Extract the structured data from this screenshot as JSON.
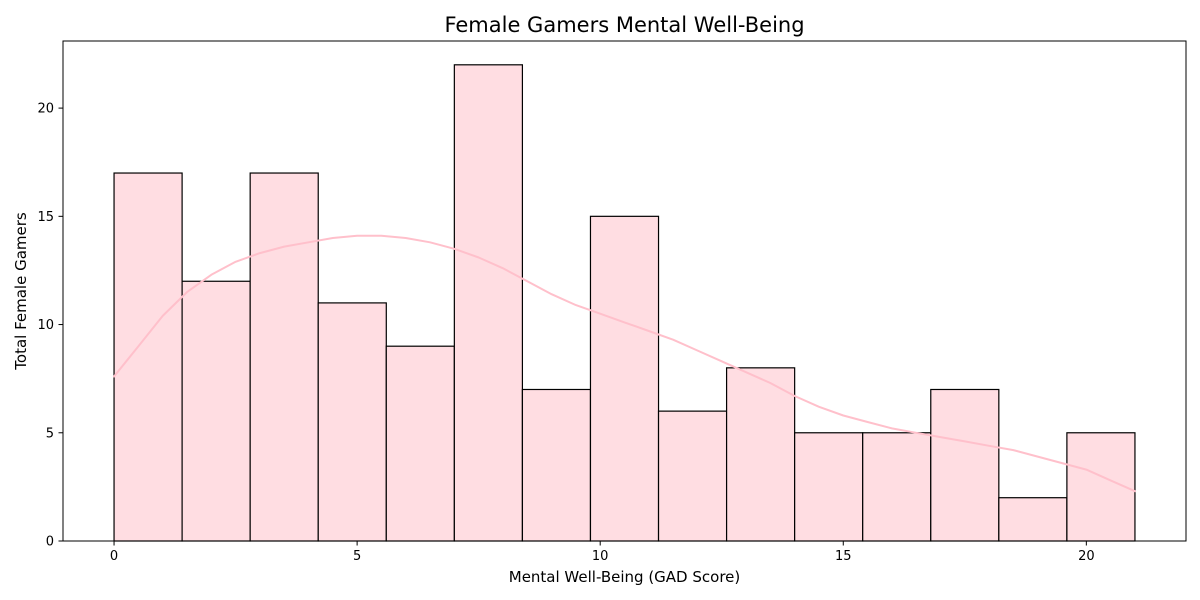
{
  "chart_data": {
    "type": "bar",
    "title": "Female Gamers Mental Well-Being",
    "xlabel": "Mental Well-Being (GAD Score)",
    "ylabel": "Total Female Gamers",
    "bin_edges": [
      0,
      1.4,
      2.8,
      4.2,
      5.6,
      7.0,
      8.4,
      9.8,
      11.2,
      12.6,
      14.0,
      15.4,
      16.8,
      18.2,
      19.6,
      21.0
    ],
    "values": [
      17,
      12,
      17,
      11,
      9,
      22,
      7,
      15,
      6,
      8,
      5,
      5,
      7,
      2,
      5
    ],
    "xlim": [
      -1.05,
      22.05
    ],
    "ylim": [
      0,
      23.1
    ],
    "xticks": [
      0,
      5,
      10,
      15,
      20
    ],
    "yticks": [
      0,
      5,
      10,
      15,
      20
    ],
    "bar_color": "#ffdde2",
    "bar_edge_color": "#000000",
    "kde_color": "#ffc0cb",
    "kde_curve": {
      "x": [
        0,
        0.5,
        1,
        1.5,
        2,
        2.5,
        3,
        3.5,
        4,
        4.5,
        5,
        5.5,
        6,
        6.5,
        7,
        7.5,
        8,
        8.5,
        9,
        9.5,
        10,
        10.5,
        11,
        11.5,
        12,
        12.5,
        13,
        13.5,
        14,
        14.5,
        15,
        15.5,
        16,
        16.5,
        17,
        17.5,
        18,
        18.5,
        19,
        19.5,
        20,
        20.5,
        21
      ],
      "y": [
        7.6,
        9.0,
        10.4,
        11.5,
        12.3,
        12.9,
        13.3,
        13.6,
        13.8,
        14.0,
        14.1,
        14.1,
        14.0,
        13.8,
        13.5,
        13.1,
        12.6,
        12.0,
        11.4,
        10.9,
        10.5,
        10.1,
        9.7,
        9.3,
        8.8,
        8.3,
        7.8,
        7.3,
        6.7,
        6.2,
        5.8,
        5.5,
        5.2,
        5.0,
        4.8,
        4.6,
        4.4,
        4.2,
        3.9,
        3.6,
        3.3,
        2.8,
        2.3
      ]
    },
    "grid": false,
    "legend": "none"
  }
}
